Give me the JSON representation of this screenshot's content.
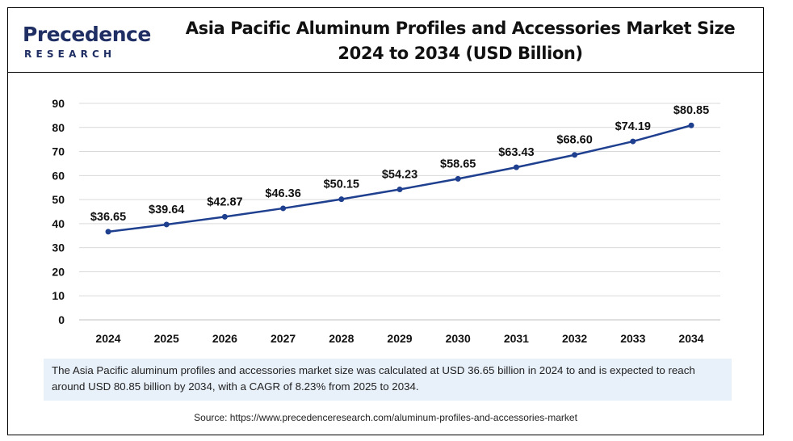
{
  "header": {
    "logo_text": "Precedence",
    "logo_sub": "RESEARCH",
    "title_line1": "Asia Pacific Aluminum Profiles and Accessories Market Size",
    "title_line2": "2024 to 2034 (USD Billion)"
  },
  "description": "The Asia Pacific aluminum profiles and accessories market size was calculated at USD 36.65 billion in 2024 to and is expected to reach around USD 80.85 billion by 2034, with a CAGR of 8.23% from 2025 to 2034.",
  "source": "Source: https://www.precedenceresearch.com/aluminum-profiles-and-accessories-market",
  "colors": {
    "line": "#1f3f8f",
    "point": "#1f3f8f",
    "grid": "#d9d9d9",
    "logo": "#1f2e63",
    "desc_bg": "#e8f0fa"
  },
  "chart_data": {
    "type": "line",
    "title": "Asia Pacific Aluminum Profiles and Accessories Market Size 2024 to 2034 (USD Billion)",
    "xlabel": "",
    "ylabel": "",
    "categories": [
      "2024",
      "2025",
      "2026",
      "2027",
      "2028",
      "2029",
      "2030",
      "2031",
      "2032",
      "2033",
      "2034"
    ],
    "values": [
      36.65,
      39.64,
      42.87,
      46.36,
      50.15,
      54.23,
      58.65,
      63.43,
      68.6,
      74.19,
      80.85
    ],
    "data_labels": [
      "$36.65",
      "$39.64",
      "$42.87",
      "$46.36",
      "$50.15",
      "$54.23",
      "$58.65",
      "$63.43",
      "$68.60",
      "$74.19",
      "$80.85"
    ],
    "ylim": [
      0,
      90
    ],
    "yticks": [
      0,
      10,
      20,
      30,
      40,
      50,
      60,
      70,
      80,
      90
    ],
    "grid": true,
    "legend": "none"
  }
}
